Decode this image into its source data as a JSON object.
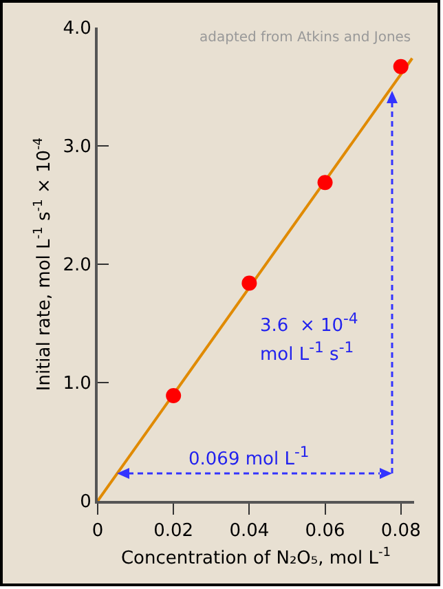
{
  "chart_data": {
    "type": "scatter",
    "xlabel": "Concentration of N₂O₅, mol L$^{-1}$",
    "ylabel": "Initial rate, mol L$^{-1}$ s$^{-1}$ × 10$^{-4}$",
    "xlim": [
      0,
      0.0835
    ],
    "ylim": [
      0,
      4.0
    ],
    "xticks": [
      0,
      0.02,
      0.04,
      0.06,
      0.08
    ],
    "yticks": [
      0,
      {
        "value": 1,
        "label": "1.0"
      },
      {
        "value": 2,
        "label": "2.0"
      },
      {
        "value": 3,
        "label": "3.0"
      },
      {
        "value": 4,
        "label": "4.0"
      }
    ],
    "grid": false,
    "series": [
      {
        "type": "line",
        "color": "#e08a00",
        "x": [
          0,
          0.083
        ],
        "values": [
          0,
          3.74
        ],
        "marker": "none",
        "line_style": "solid"
      },
      {
        "color": "#ff0000",
        "x": [
          0.02,
          0.04,
          0.06,
          0.08
        ],
        "values": [
          0.89,
          1.84,
          2.69,
          3.67
        ],
        "marker": "circle"
      }
    ],
    "annotations": [
      "adapted from Atkins and Jones",
      "3.6  × 10$^{-4}$ mol L$^{-1}$ s$^{-1}$",
      "0.069 mol L$^{-1}$"
    ]
  }
}
